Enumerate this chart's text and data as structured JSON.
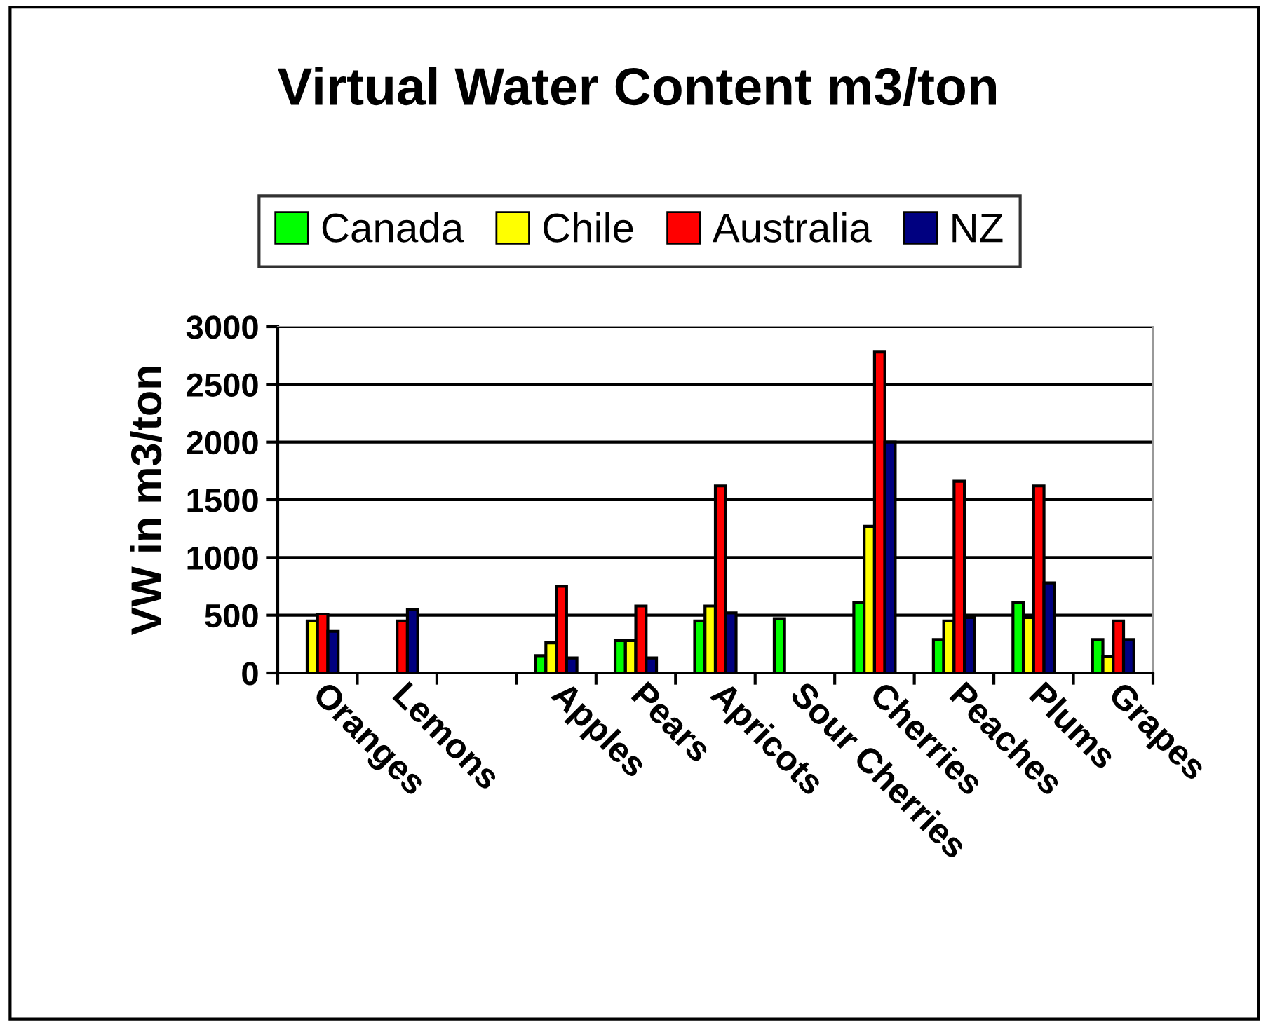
{
  "chart_data": {
    "type": "bar",
    "title": "Virtual Water Content m3/ton",
    "ylabel": "VW in m3/ton",
    "categories": [
      "Oranges",
      "Lemons",
      null,
      "Apples",
      "Pears",
      "Apricots",
      "Sour Cherries",
      "Cherries",
      "Peaches",
      "Plums",
      "Grapes"
    ],
    "series": [
      {
        "name": "Canada",
        "color": "#00ff00",
        "values": [
          null,
          null,
          null,
          150,
          280,
          450,
          470,
          610,
          290,
          610,
          290
        ]
      },
      {
        "name": "Chile",
        "color": "#ffff00",
        "values": [
          450,
          null,
          null,
          260,
          280,
          580,
          null,
          1270,
          450,
          480,
          140
        ]
      },
      {
        "name": "Australia",
        "color": "#ff0000",
        "values": [
          510,
          450,
          null,
          750,
          580,
          1620,
          null,
          2780,
          1660,
          1620,
          450
        ]
      },
      {
        "name": "NZ",
        "color": "#000080",
        "values": [
          360,
          550,
          null,
          130,
          130,
          520,
          null,
          2000,
          480,
          780,
          290
        ]
      }
    ],
    "ylim": [
      0,
      3000
    ],
    "yticks": [
      0,
      500,
      1000,
      1500,
      2000,
      2500,
      3000
    ],
    "grid": "y",
    "legend": "top"
  }
}
